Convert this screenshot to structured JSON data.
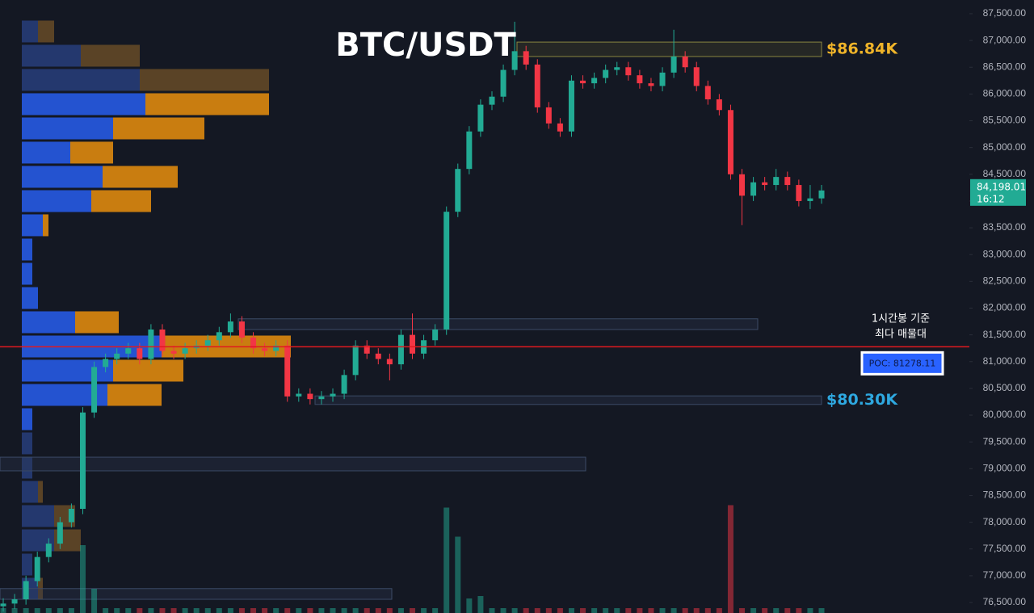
{
  "chart_data": {
    "type": "candlestick",
    "title": "BTC/USDT",
    "ylim": [
      76304,
      87756
    ],
    "yticks": [
      {
        "value": 76500,
        "label": "76,500.00"
      },
      {
        "value": 77000,
        "label": "77,000.00"
      },
      {
        "value": 77500,
        "label": "77,500.00"
      },
      {
        "value": 78000,
        "label": "78,000.00"
      },
      {
        "value": 78500,
        "label": "78,500.00"
      },
      {
        "value": 79000,
        "label": "79,000.00"
      },
      {
        "value": 79500,
        "label": "79,500.00"
      },
      {
        "value": 80000,
        "label": "80,000.00"
      },
      {
        "value": 80500,
        "label": "80,500.00"
      },
      {
        "value": 81000,
        "label": "81,000.00"
      },
      {
        "value": 81500,
        "label": "81,500.00"
      },
      {
        "value": 82000,
        "label": "82,000.00"
      },
      {
        "value": 82500,
        "label": "82,500.00"
      },
      {
        "value": 83000,
        "label": "83,000.00"
      },
      {
        "value": 83500,
        "label": "83,500.00"
      },
      {
        "value": 84000,
        "label": "84,000.00"
      },
      {
        "value": 84500,
        "label": "84,500.00"
      },
      {
        "value": 85000,
        "label": "85,000.00"
      },
      {
        "value": 85500,
        "label": "85,500.00"
      },
      {
        "value": 86000,
        "label": "86,000.00"
      },
      {
        "value": 86500,
        "label": "86,500.00"
      },
      {
        "value": 87000,
        "label": "87,000.00"
      },
      {
        "value": 87500,
        "label": "87,500.00"
      }
    ],
    "up_color": "#22ab94",
    "down_color": "#f23645",
    "open": [
      76430,
      76480,
      76560,
      76900,
      77350,
      77600,
      78000,
      78250,
      80050,
      80900,
      81050,
      81150,
      81250,
      81050,
      81600,
      81200,
      81150,
      81250,
      81300,
      81400,
      81550,
      81750,
      81450,
      81250,
      81200,
      81300,
      80350,
      80400,
      80300,
      80350,
      80400,
      80750,
      81300,
      81150,
      81050,
      80950,
      81500,
      81150,
      81400,
      81600,
      83800,
      84600,
      85300,
      85800,
      85950,
      86450,
      86800,
      86550,
      85750,
      85450,
      85300,
      86250,
      86200,
      86300,
      86450,
      86500,
      86350,
      86200,
      86150,
      86400,
      86700,
      86500,
      86150,
      85900,
      85700,
      84500,
      84100,
      84350,
      84300,
      84450,
      84300,
      84000,
      84050
    ],
    "high": [
      76580,
      76660,
      77000,
      77450,
      77700,
      78100,
      78350,
      80150,
      81000,
      81150,
      81250,
      81350,
      81350,
      81700,
      81700,
      81300,
      81350,
      81400,
      81500,
      81650,
      81900,
      81850,
      81550,
      81350,
      81400,
      81400,
      80500,
      80500,
      80450,
      80500,
      80850,
      81400,
      81400,
      81250,
      81150,
      81600,
      81900,
      81500,
      81700,
      83900,
      84700,
      85400,
      85900,
      86050,
      86550,
      87350,
      86900,
      86650,
      85850,
      85550,
      86350,
      86350,
      86400,
      86550,
      86600,
      86600,
      86450,
      86300,
      86500,
      87200,
      86800,
      86600,
      86250,
      86000,
      85800,
      84600,
      84450,
      84450,
      84600,
      84550,
      84400,
      84300,
      84300
    ],
    "low": [
      76330,
      76380,
      76460,
      76800,
      77250,
      77500,
      77900,
      78150,
      79950,
      80800,
      80950,
      81050,
      80950,
      80950,
      81100,
      81050,
      81050,
      81150,
      81200,
      81300,
      81450,
      81350,
      81150,
      81100,
      81100,
      80250,
      80250,
      80200,
      80200,
      80250,
      80300,
      80650,
      81050,
      80950,
      80650,
      80850,
      81050,
      81050,
      81300,
      81500,
      83700,
      84500,
      85200,
      85700,
      85850,
      86350,
      86450,
      85650,
      85350,
      85200,
      85200,
      86100,
      86100,
      86200,
      86350,
      86250,
      86100,
      86050,
      86050,
      86300,
      86400,
      86050,
      85800,
      85600,
      84400,
      83550,
      84000,
      84200,
      84200,
      84200,
      83900,
      83850,
      83950
    ],
    "close": [
      76480,
      76560,
      76900,
      77350,
      77600,
      78000,
      78250,
      80050,
      80900,
      81050,
      81150,
      81250,
      81050,
      81600,
      81200,
      81150,
      81250,
      81300,
      81400,
      81550,
      81750,
      81450,
      81250,
      81200,
      81300,
      80350,
      80400,
      80300,
      80350,
      80400,
      80750,
      81300,
      81150,
      81050,
      80950,
      81500,
      81150,
      81400,
      81600,
      83800,
      84600,
      85300,
      85800,
      85950,
      86450,
      86800,
      86550,
      85750,
      85450,
      85300,
      86250,
      86200,
      86300,
      86450,
      86500,
      86350,
      86200,
      86150,
      86400,
      86700,
      86500,
      86150,
      85900,
      85700,
      84500,
      84100,
      84350,
      84300,
      84450,
      84300,
      84000,
      84050,
      84198.01
    ],
    "volume": [
      4,
      4,
      4,
      4,
      4,
      4,
      4,
      56,
      20,
      4,
      4,
      4,
      4,
      4,
      4,
      4,
      4,
      4,
      4,
      4,
      4,
      4,
      4,
      4,
      4,
      4,
      4,
      4,
      4,
      4,
      4,
      4,
      4,
      4,
      4,
      4,
      4,
      4,
      4,
      87,
      63,
      12,
      14,
      4,
      4,
      4,
      4,
      4,
      4,
      4,
      4,
      4,
      4,
      4,
      4,
      4,
      4,
      4,
      4,
      4,
      4,
      4,
      4,
      4,
      89,
      4,
      4,
      4,
      4,
      4,
      4,
      4,
      4
    ],
    "volume_profile": {
      "prices": [
        87168,
        86715,
        86263,
        85810,
        85357,
        84905,
        84452,
        83999,
        83547,
        83094,
        82641,
        82188,
        81736,
        81283,
        80831,
        80378,
        79925,
        79473,
        79020,
        78567,
        78115,
        77662,
        77209,
        76757
      ],
      "buy": [
        20,
        73,
        146,
        153,
        113,
        60,
        100,
        86,
        26,
        13,
        13,
        20,
        66,
        173,
        113,
        106,
        13,
        13,
        13,
        20,
        40,
        40,
        13,
        20
      ],
      "sell": [
        20,
        73,
        160,
        153,
        113,
        53,
        93,
        74,
        7,
        0,
        0,
        0,
        54,
        160,
        87,
        67,
        0,
        0,
        0,
        6,
        26,
        33,
        0,
        6
      ],
      "value_area": [
        79700,
        86000
      ],
      "buy_color": "#2453d0",
      "sell_color": "#c97d10",
      "buy_dim_color": "#24386e",
      "sell_dim_color": "#5a4326"
    },
    "zones": [
      {
        "top": 86970,
        "bottom": 86700,
        "label": "$86.84K",
        "color": "#f0b429"
      },
      {
        "top": 81800,
        "bottom": 81600
      },
      {
        "top": 80360,
        "bottom": 80200,
        "label": "$80.30K",
        "color": "#2ea8e0"
      },
      {
        "top": 79215,
        "bottom": 78960
      },
      {
        "top": 76760,
        "bottom": 76560
      }
    ],
    "poc": {
      "value": 81278.11,
      "label": "POC: 81278.11",
      "color": "#e0191f"
    },
    "annotation": [
      "1시간봉 기준",
      "최다 매물대"
    ],
    "last_price": {
      "value": 84198.01,
      "label": "84,198.01",
      "time": "16:12"
    }
  }
}
